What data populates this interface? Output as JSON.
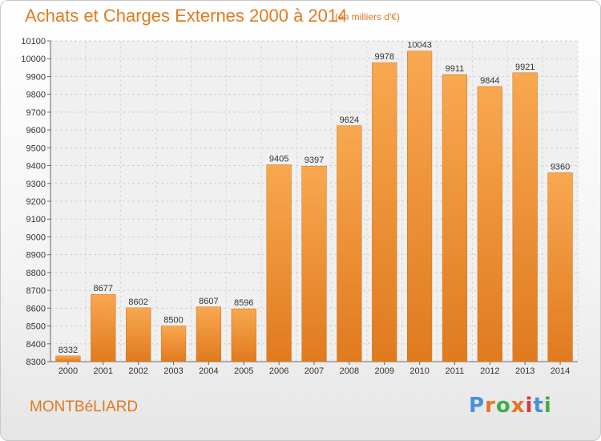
{
  "header": {
    "title": "Achats et Charges Externes 2000 à 2014",
    "subtitle": "(en milliers d'€)"
  },
  "footer": {
    "place": "MONTBéLIARD",
    "logo_letters": [
      "P",
      "r",
      "o",
      "x",
      "i",
      "t",
      "i"
    ],
    "logo_colors": [
      "#4a90d9",
      "#e8732a",
      "#3fae49",
      "#e8732a",
      "#d63a3a",
      "#4a90d9",
      "#3fae49"
    ]
  },
  "chart_data": {
    "type": "bar",
    "title": "Achats et Charges Externes 2000 à 2014",
    "subtitle": "(en milliers d'€)",
    "categories": [
      "2000",
      "2001",
      "2002",
      "2003",
      "2004",
      "2005",
      "2006",
      "2007",
      "2008",
      "2009",
      "2010",
      "2011",
      "2012",
      "2013",
      "2014"
    ],
    "values": [
      8332,
      8677,
      8602,
      8500,
      8607,
      8596,
      9405,
      9397,
      9624,
      9978,
      10043,
      9911,
      9844,
      9921,
      9360
    ],
    "ylim": [
      8300,
      10100
    ],
    "yticks": [
      8300,
      8400,
      8500,
      8600,
      8700,
      8800,
      8900,
      9000,
      9100,
      9200,
      9300,
      9400,
      9500,
      9600,
      9700,
      9800,
      9900,
      10000,
      10100
    ],
    "grid": true,
    "bar_color_top": "#f8a850",
    "bar_color_bottom": "#e07a1f"
  }
}
